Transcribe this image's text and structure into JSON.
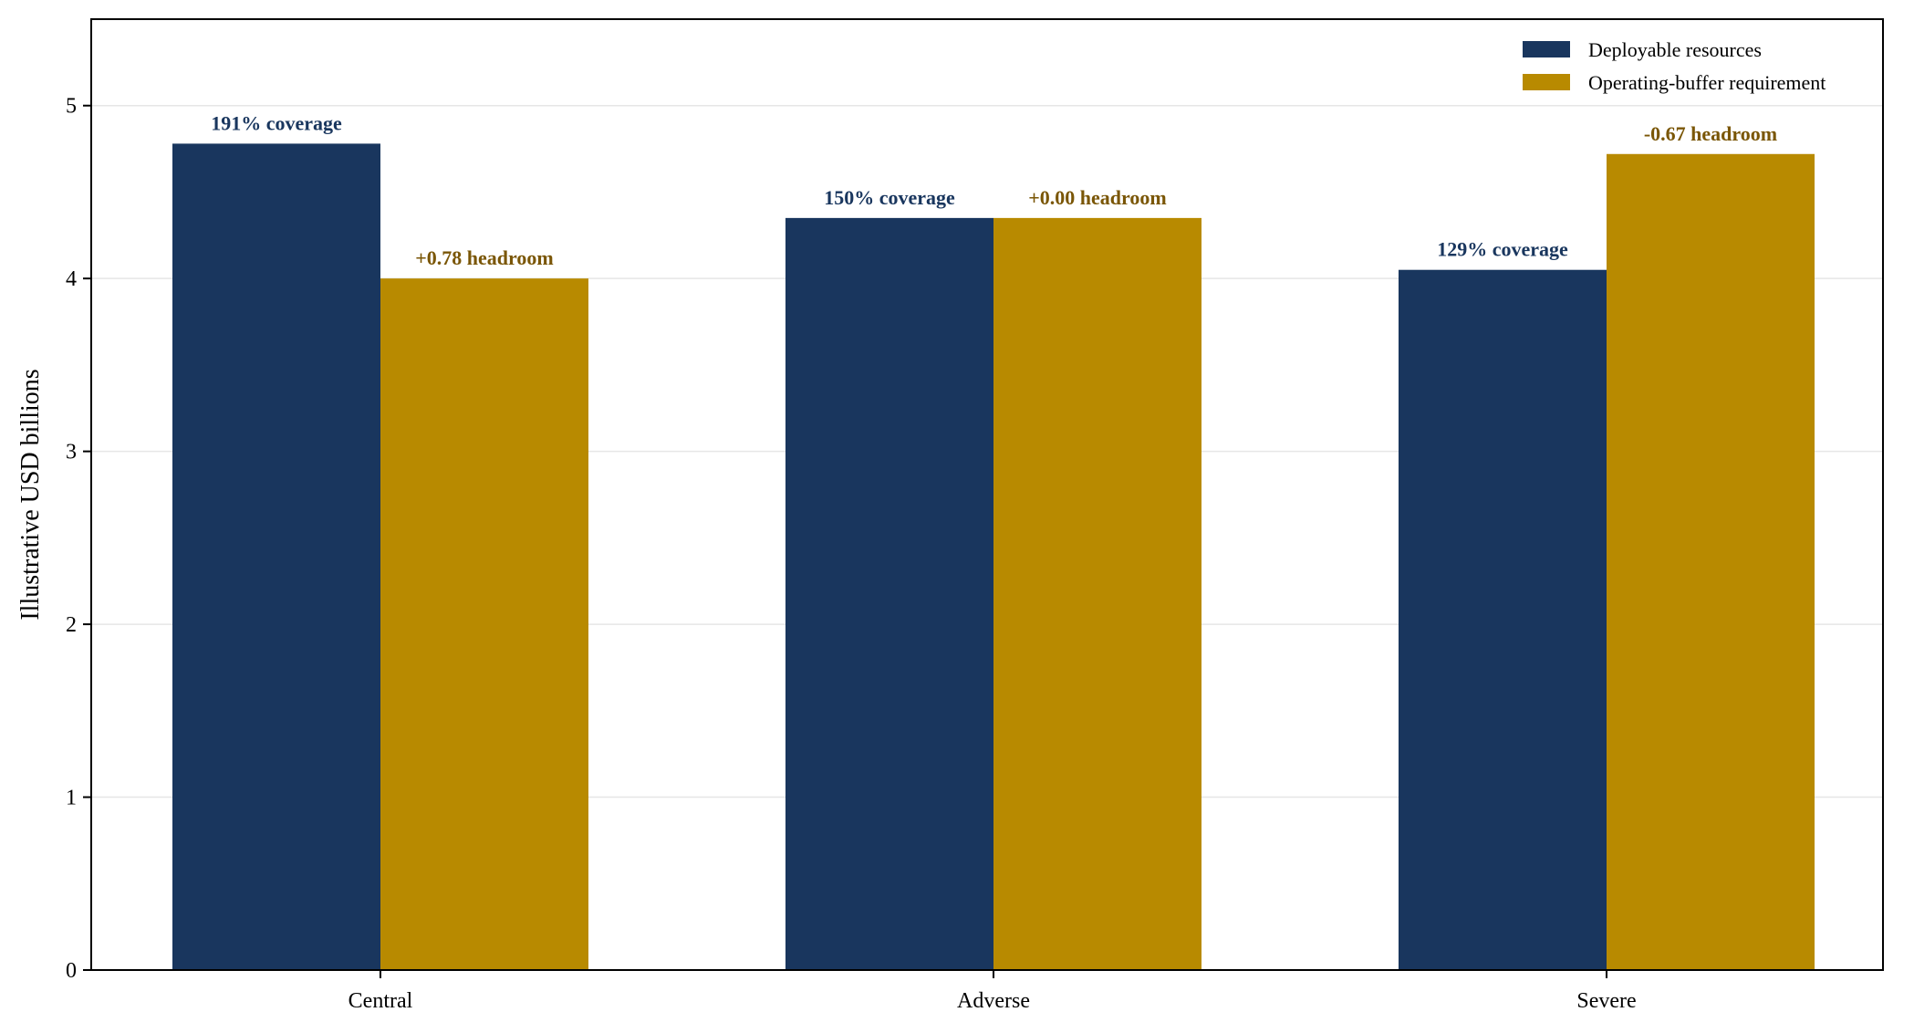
{
  "chart_data": {
    "type": "bar",
    "categories": [
      "Central",
      "Adverse",
      "Severe"
    ],
    "series": [
      {
        "name": "Deployable resources",
        "color": "#19365e",
        "label_color": "#19365e",
        "values": [
          4.78,
          4.35,
          4.05
        ],
        "labels": [
          "191% coverage",
          "150% coverage",
          "129% coverage"
        ]
      },
      {
        "name": "Operating-buffer requirement",
        "color": "#b88a00",
        "label_color": "#7a5606",
        "values": [
          4.0,
          4.35,
          4.72
        ],
        "labels": [
          "+0.78 headroom",
          "+0.00 headroom",
          "-0.67 headroom"
        ]
      }
    ],
    "title": "",
    "xlabel": "",
    "ylabel": "Illustrative USD billions",
    "ylim": [
      0,
      5.5
    ],
    "yticks": [
      "0",
      "1",
      "2",
      "3",
      "4",
      "5"
    ],
    "grid": "horizontal",
    "legend_position": "top-right"
  }
}
